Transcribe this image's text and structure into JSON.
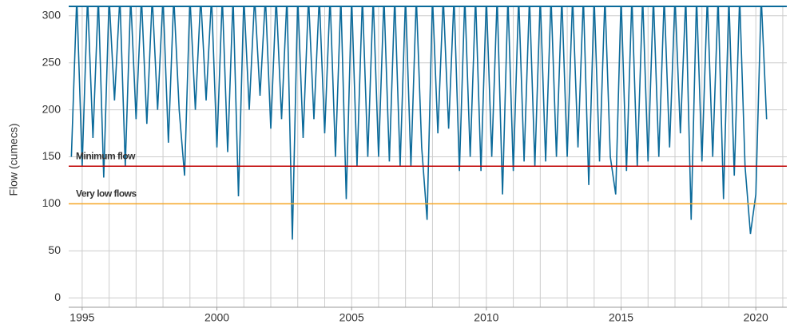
{
  "chart_data": {
    "type": "line",
    "y_label": "Flow (cumecs)",
    "xlim": [
      1994.5,
      2021.15
    ],
    "ylim": [
      -10,
      310
    ],
    "xticks": [
      1995,
      2000,
      2005,
      2010,
      2015,
      2020
    ],
    "yticks": [
      0,
      50,
      100,
      150,
      200,
      250,
      300
    ],
    "xgrid": [
      1995,
      1996,
      1997,
      1998,
      1999,
      2000,
      2001,
      2002,
      2003,
      2004,
      2005,
      2006,
      2007,
      2008,
      2009,
      2010,
      2011,
      2012,
      2013,
      2014,
      2015,
      2016,
      2017,
      2018,
      2019,
      2020,
      2021
    ],
    "grid": true,
    "reference_lines": [
      {
        "label": "Minimum flow",
        "value": 140,
        "color": "#c00000"
      },
      {
        "label": "Very low flows",
        "value": 100,
        "color": "#f5a623"
      }
    ],
    "series": [
      {
        "color": "#0b6a9a",
        "x": [
          1994.6,
          1994.8,
          1995.0,
          1995.2,
          1995.4,
          1995.6,
          1995.8,
          1996.0,
          1996.2,
          1996.4,
          1996.6,
          1996.8,
          1997.0,
          1997.2,
          1997.4,
          1997.6,
          1997.8,
          1998.0,
          1998.2,
          1998.4,
          1998.6,
          1998.8,
          1999.0,
          1999.2,
          1999.4,
          1999.6,
          1999.8,
          2000.0,
          2000.2,
          2000.4,
          2000.6,
          2000.8,
          2001.0,
          2001.2,
          2001.4,
          2001.6,
          2001.8,
          2002.0,
          2002.2,
          2002.4,
          2002.6,
          2002.8,
          2003.0,
          2003.2,
          2003.4,
          2003.6,
          2003.8,
          2004.0,
          2004.2,
          2004.4,
          2004.6,
          2004.8,
          2005.0,
          2005.2,
          2005.4,
          2005.6,
          2005.8,
          2006.0,
          2006.2,
          2006.4,
          2006.6,
          2006.8,
          2007.0,
          2007.2,
          2007.4,
          2007.6,
          2007.8,
          2008.0,
          2008.2,
          2008.4,
          2008.6,
          2008.8,
          2009.0,
          2009.2,
          2009.4,
          2009.6,
          2009.8,
          2010.0,
          2010.2,
          2010.4,
          2010.6,
          2010.8,
          2011.0,
          2011.2,
          2011.4,
          2011.6,
          2011.8,
          2012.0,
          2012.2,
          2012.4,
          2012.6,
          2012.8,
          2013.0,
          2013.2,
          2013.4,
          2013.6,
          2013.8,
          2014.0,
          2014.2,
          2014.4,
          2014.6,
          2014.8,
          2015.0,
          2015.2,
          2015.4,
          2015.6,
          2015.8,
          2016.0,
          2016.2,
          2016.4,
          2016.6,
          2016.8,
          2017.0,
          2017.2,
          2017.4,
          2017.6,
          2017.8,
          2018.0,
          2018.2,
          2018.4,
          2018.6,
          2018.8,
          2019.0,
          2019.2,
          2019.4,
          2019.6,
          2019.8,
          2020.0,
          2020.2,
          2020.4
        ],
        "values": [
          150,
          320,
          140,
          320,
          170,
          320,
          128,
          320,
          210,
          320,
          140,
          320,
          190,
          320,
          185,
          320,
          200,
          320,
          165,
          320,
          200,
          130,
          320,
          200,
          320,
          210,
          320,
          160,
          320,
          155,
          320,
          108,
          320,
          200,
          320,
          215,
          320,
          180,
          320,
          190,
          320,
          62,
          320,
          170,
          320,
          190,
          320,
          175,
          320,
          150,
          320,
          105,
          320,
          140,
          320,
          150,
          320,
          150,
          320,
          145,
          320,
          140,
          320,
          140,
          320,
          160,
          83,
          320,
          175,
          320,
          180,
          320,
          135,
          320,
          150,
          320,
          135,
          320,
          150,
          320,
          110,
          320,
          135,
          320,
          145,
          320,
          140,
          320,
          145,
          320,
          150,
          320,
          150,
          320,
          160,
          320,
          120,
          320,
          145,
          320,
          150,
          110,
          320,
          135,
          320,
          140,
          320,
          145,
          320,
          150,
          320,
          160,
          320,
          175,
          320,
          83,
          320,
          145,
          320,
          150,
          320,
          105,
          320,
          130,
          320,
          140,
          68,
          110,
          320,
          190
        ]
      }
    ]
  }
}
